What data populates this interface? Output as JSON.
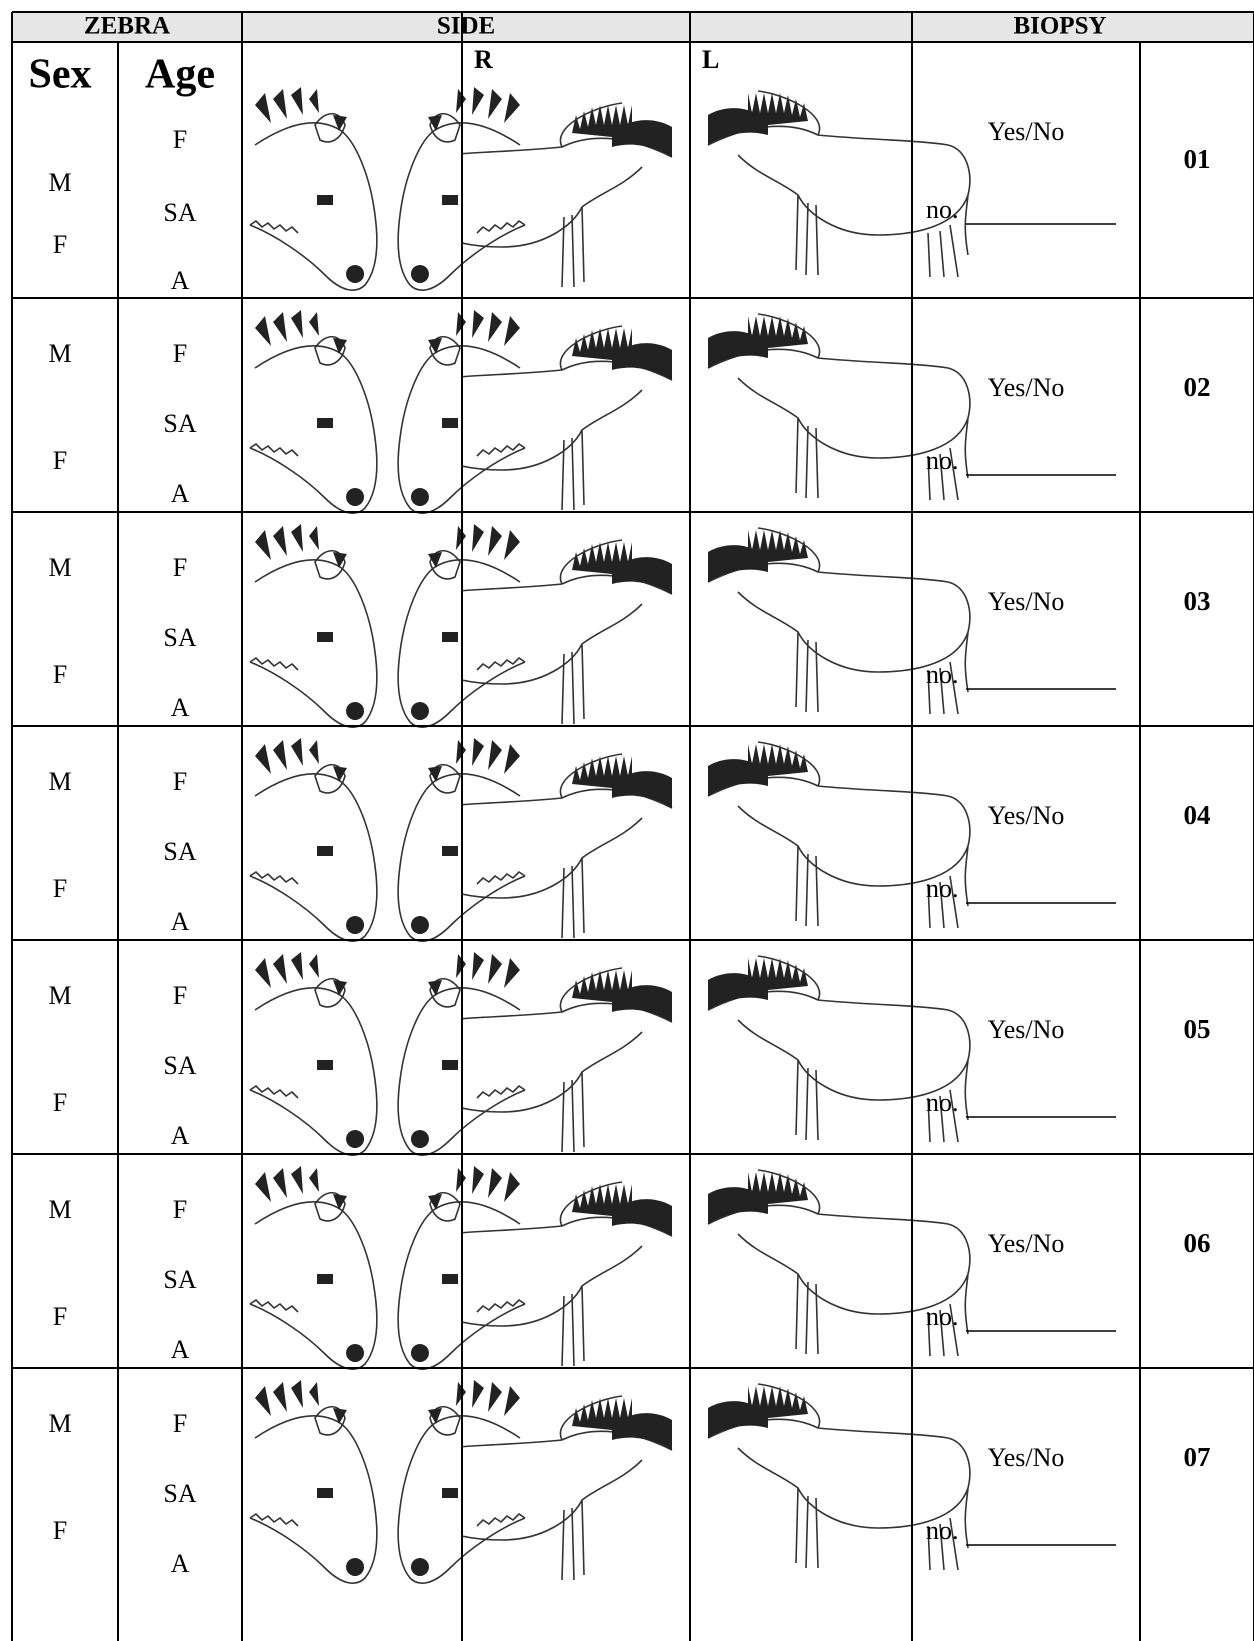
{
  "header": {
    "zebra": "ZEBRA",
    "side": "SIDE",
    "biopsy": "BIOPSY"
  },
  "columns": {
    "sex": "Sex",
    "age": "Age",
    "right": "R",
    "left": "L"
  },
  "rows": [
    {
      "sex": [
        "M",
        "F"
      ],
      "age": [
        "F",
        "SA",
        "A"
      ],
      "biopsy": "Yes/No",
      "number_label": "no.",
      "id": "01"
    },
    {
      "sex": [
        "M",
        "F"
      ],
      "age": [
        "F",
        "SA",
        "A"
      ],
      "biopsy": "Yes/No",
      "number_label": "no.",
      "id": "02"
    },
    {
      "sex": [
        "M",
        "F"
      ],
      "age": [
        "F",
        "SA",
        "A"
      ],
      "biopsy": "Yes/No",
      "number_label": "no.",
      "id": "03"
    },
    {
      "sex": [
        "M",
        "F"
      ],
      "age": [
        "F",
        "SA",
        "A"
      ],
      "biopsy": "Yes/No",
      "number_label": "no.",
      "id": "04"
    },
    {
      "sex": [
        "M",
        "F"
      ],
      "age": [
        "F",
        "SA",
        "A"
      ],
      "biopsy": "Yes/No",
      "number_label": "no.",
      "id": "05"
    },
    {
      "sex": [
        "M",
        "F"
      ],
      "age": [
        "F",
        "SA",
        "A"
      ],
      "biopsy": "Yes/No",
      "number_label": "no.",
      "id": "06"
    },
    {
      "sex": [
        "M",
        "F"
      ],
      "age": [
        "F",
        "SA",
        "A"
      ],
      "biopsy": "Yes/No",
      "number_label": "no.",
      "id": "07"
    }
  ]
}
